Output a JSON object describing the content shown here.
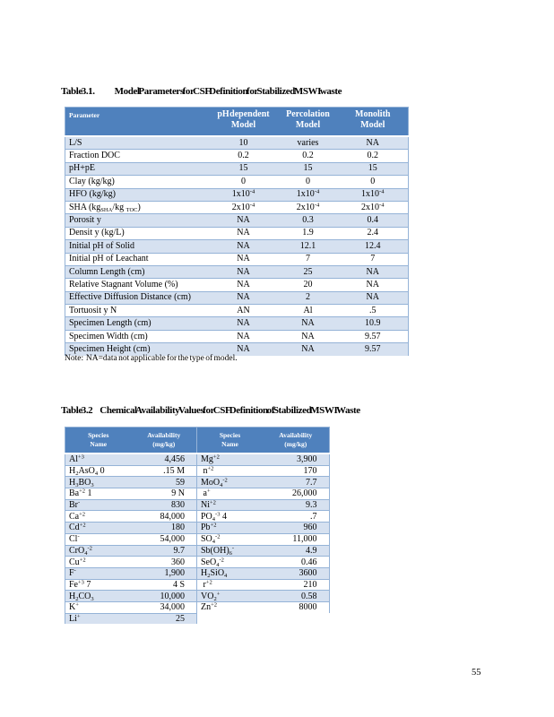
{
  "page": {
    "number": "55"
  },
  "colors": {
    "header_blue": "#4F81BD",
    "band_blue": "#D6E1F0",
    "border_blue": "#95B3D7",
    "header_text": "#FFFFFF"
  },
  "table1": {
    "title_label": "Table 3.1.",
    "title_text": "Model Parameters for CSF Definition for Stabilized MSWI waste",
    "headers": [
      "Parameter",
      "pH dependent<br>Model",
      "Percolation<br>Model",
      "Monolith<br>Model"
    ],
    "rows": [
      {
        "param": "L/S",
        "v1": "10",
        "v2": "varies",
        "v3": "NA"
      },
      {
        "param": "Fraction DOC",
        "v1": "0.2",
        "v2": "0.2",
        "v3": "0.2"
      },
      {
        "param": "pH+pE",
        "v1": "15",
        "v2": "15",
        "v3": "15"
      },
      {
        "param": "Clay (kg/kg)",
        "v1": "0",
        "v2": "0",
        "v3": "0"
      },
      {
        "param": "HFO (kg/kg)",
        "v1": "1x10<sup>-4</sup>",
        "v2": "1x10<sup>-4</sup>",
        "v3": "1x10<sup>-4</sup>"
      },
      {
        "param": "SHA (kg<sub>SHA</sub>/kg <sub>TOC</sub>)",
        "v1": "2x10<sup>-4</sup>",
        "v2": "2x10<sup>-4</sup>",
        "v3": "2x10<sup>-4</sup>"
      },
      {
        "param": "Porosit y",
        "v1": "NA",
        "v2": "0.3",
        "v3": "0.4"
      },
      {
        "param": "Densit y (kg/L)",
        "v1": "NA",
        "v2": "1.9",
        "v3": "2.4"
      },
      {
        "param": "Initial pH of Solid",
        "v1": "NA",
        "v2": "12.1",
        "v3": "12.4"
      },
      {
        "param": "Initial pH of Leachant",
        "v1": "NA",
        "v2": "7",
        "v3": "7"
      },
      {
        "param": "Column Length (cm)",
        "v1": "NA",
        "v2": "25",
        "v3": "NA"
      },
      {
        "param": "Relative Stagnant Volume (%)",
        "v1": "NA",
        "v2": "20",
        "v3": "NA"
      },
      {
        "param": "Effective Diffusion Distance (cm)",
        "v1": "NA",
        "v2": "2",
        "v3": "NA"
      },
      {
        "param": "Tortuosit y N",
        "v1": "AN",
        "v2": "Al",
        "v3": ".5"
      },
      {
        "param": "Specimen Length (cm)",
        "v1": "NA",
        "v2": "NA",
        "v3": "10.9"
      },
      {
        "param": "Specimen Width (cm)",
        "v1": "NA",
        "v2": "NA",
        "v3": "9.57"
      },
      {
        "param": "Specimen Height (cm)",
        "v1": "NA",
        "v2": "NA",
        "v3": "9.57"
      }
    ],
    "note": "Note:  NA=data not applicable for the type of model."
  },
  "table2": {
    "title_label": "Table 3.2",
    "title_text": "Chemical Availability Values for CSF Definition of Stabilized MSWI Waste",
    "header": {
      "species": "Species<br>Name",
      "availability": "Availability<br>(mg/kg)"
    },
    "left_rows": [
      {
        "species": "Al<sup>+3</sup>",
        "value": "4,456"
      },
      {
        "species": "H<sub>2</sub>AsO<sub>4</sub> 0",
        "value": ".15 M"
      },
      {
        "species": "H<sub>3</sub>BO<sub>3</sub>",
        "value": "59"
      },
      {
        "species": "Ba<sup>+2</sup> 1",
        "value": "9 N"
      },
      {
        "species": "Br<sup>-</sup>",
        "value": "830"
      },
      {
        "species": "Ca<sup>+2</sup>",
        "value": "84,000"
      },
      {
        "species": "Cd<sup>+2</sup>",
        "value": "180"
      },
      {
        "species": "Cl<sup>-</sup>",
        "value": "54,000"
      },
      {
        "species": "CrO<sub>4</sub><sup>-2</sup>",
        "value": "9.7"
      },
      {
        "species": "Cu<sup>+2</sup>",
        "value": "360"
      },
      {
        "species": "F<sup>-</sup>",
        "value": "1,900"
      },
      {
        "species": "Fe<sup>+3</sup> 7",
        "value": "4 S"
      },
      {
        "species": "H<sub>2</sub>CO<sub>3</sub>",
        "value": "10,000"
      },
      {
        "species": "K<sup>+</sup>",
        "value": "34,000"
      },
      {
        "species": "Li<sup>+</sup>",
        "value": "25"
      }
    ],
    "right_rows": [
      {
        "species": "Mg<sup>+2</sup>",
        "value": "3,900"
      },
      {
        "species": "&nbsp;n<sup>+2</sup>",
        "value": "170"
      },
      {
        "species": "MoO<sub>4</sub><sup>-2</sup>",
        "value": "7.7"
      },
      {
        "species": "&nbsp;a<sup>+</sup>",
        "value": "26,000"
      },
      {
        "species": "Ni<sup>+2</sup>",
        "value": "9.3"
      },
      {
        "species": "PO<sub>4</sub><sup>-3</sup> 4",
        "value": ".7"
      },
      {
        "species": "Pb<sup>+2</sup>",
        "value": "960"
      },
      {
        "species": "SO<sub>4</sub><sup>-2</sup>",
        "value": "11,000"
      },
      {
        "species": "Sb(OH)<sub>6</sub><sup>-</sup>",
        "value": "4.9"
      },
      {
        "species": "SeO<sub>4</sub><sup>-2</sup>",
        "value": "0.46"
      },
      {
        "species": "H<sub>2</sub>SiO<sub>4</sub>",
        "value": "3600"
      },
      {
        "species": "&nbsp;r<sup>+2</sup>",
        "value": "210"
      },
      {
        "species": "VO<sub>2</sub><sup>+</sup>",
        "value": "0.58"
      },
      {
        "species": "Zn<sup>+2</sup>",
        "value": "8000"
      }
    ]
  }
}
